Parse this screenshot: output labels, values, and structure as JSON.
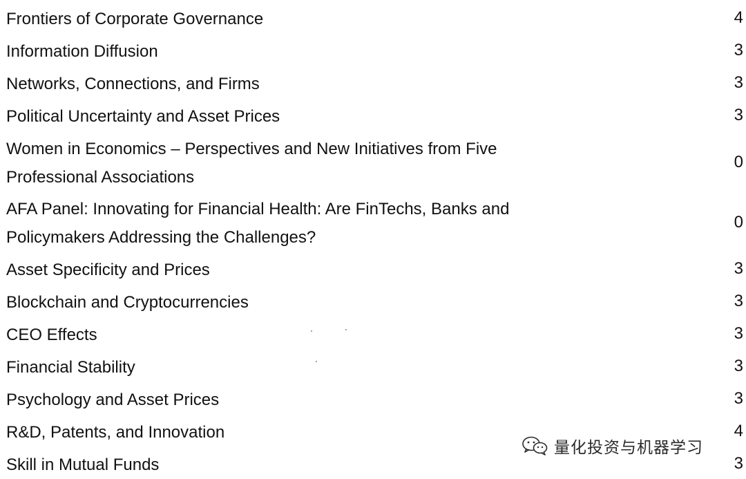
{
  "sessions": [
    {
      "title": "Frontiers of Corporate Governance",
      "count": "4"
    },
    {
      "title": "Information Diffusion",
      "count": "3"
    },
    {
      "title": "Networks, Connections, and Firms",
      "count": "3"
    },
    {
      "title": "Political Uncertainty and Asset Prices",
      "count": "3"
    },
    {
      "title": "Women in Economics – Perspectives and New Initiatives from Five\nProfessional Associations",
      "count": "0"
    },
    {
      "title": "AFA Panel: Innovating for Financial Health: Are FinTechs, Banks and\nPolicymakers Addressing the Challenges?",
      "count": "0"
    },
    {
      "title": "Asset Specificity and Prices",
      "count": "3"
    },
    {
      "title": "Blockchain and Cryptocurrencies",
      "count": "3"
    },
    {
      "title": "CEO Effects",
      "count": "3"
    },
    {
      "title": "Financial Stability",
      "count": "3"
    },
    {
      "title": "Psychology and Asset Prices",
      "count": "3"
    },
    {
      "title": "R&D, Patents, and Innovation",
      "count": "4"
    },
    {
      "title": "Skill in Mutual Funds",
      "count": "3"
    }
  ],
  "watermark": {
    "text": "量化投资与机器学习",
    "icon": "wechat-icon"
  }
}
